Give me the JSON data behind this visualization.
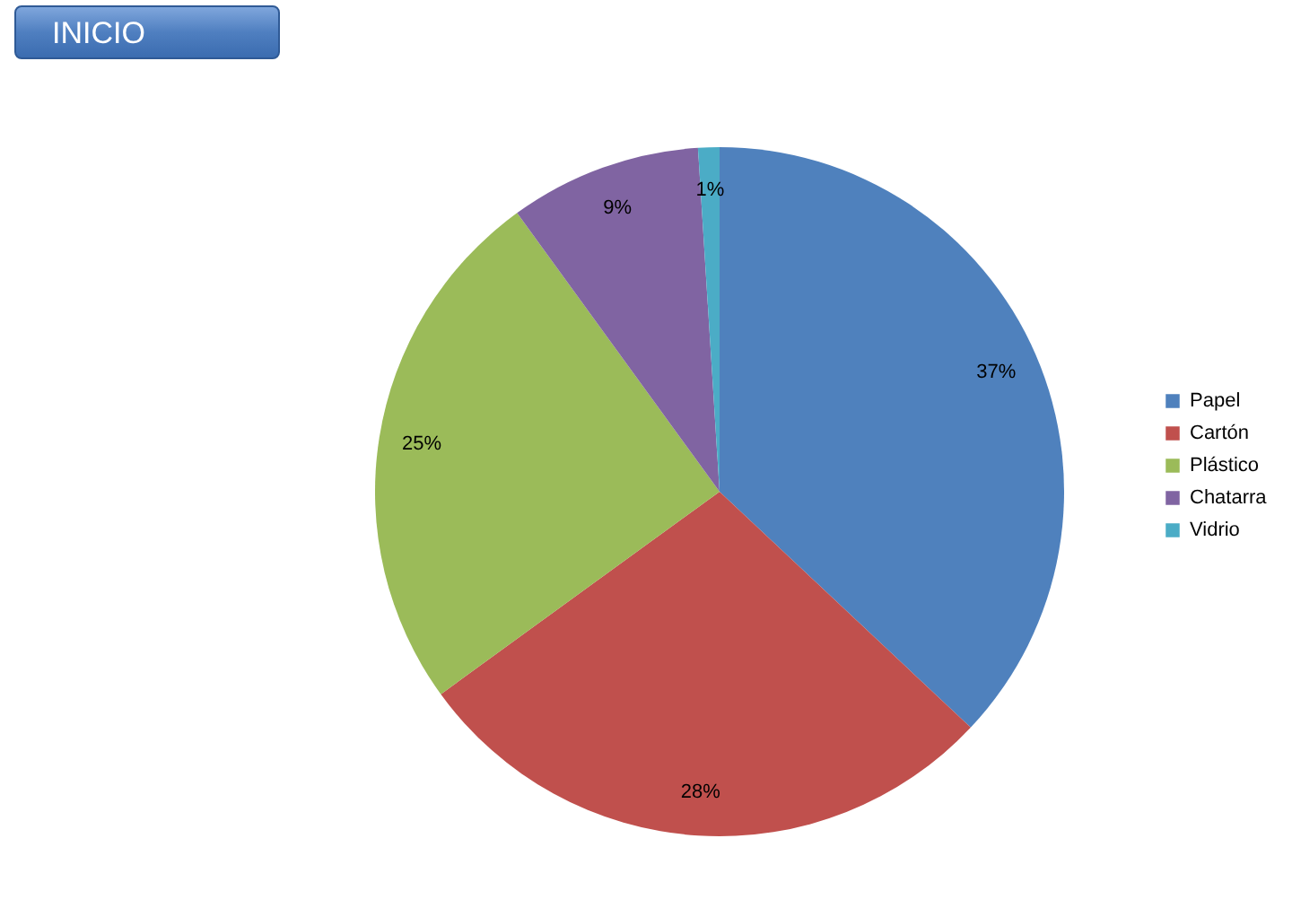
{
  "chart_data": {
    "type": "pie",
    "categories": [
      "Papel",
      "Cartón",
      "Plástico",
      "Chatarra",
      "Vidrio"
    ],
    "values": [
      37,
      28,
      25,
      9,
      1
    ],
    "colors": [
      "#4f81bd",
      "#c0504d",
      "#9bbb59",
      "#8064a2",
      "#4bacc6"
    ],
    "value_labels": [
      "37%",
      "28%",
      "25%",
      "9%",
      "1%"
    ],
    "legend": "right",
    "annotations": [
      "INICIO"
    ]
  }
}
